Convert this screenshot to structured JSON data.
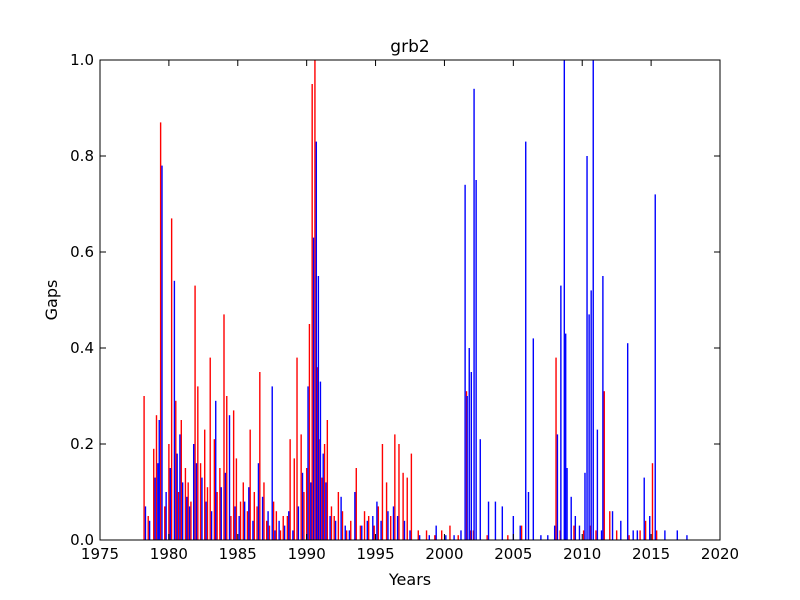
{
  "chart_data": {
    "type": "bar",
    "title": "grb2",
    "xlabel": "Years",
    "ylabel": "Gaps",
    "xlim": [
      1975,
      2020
    ],
    "ylim": [
      0,
      1.0
    ],
    "x_ticks": [
      1975,
      1980,
      1985,
      1990,
      1995,
      2000,
      2005,
      2010,
      2015,
      2020
    ],
    "x_tick_labels": [
      "1975",
      "1980",
      "1985",
      "1990",
      "1995",
      "2000",
      "2005",
      "2010",
      "2015",
      "2020"
    ],
    "y_ticks": [
      0.0,
      0.2,
      0.4,
      0.6,
      0.8,
      1.0
    ],
    "y_tick_labels": [
      "0.0",
      "0.2",
      "0.4",
      "0.6",
      "0.8",
      "1.0"
    ],
    "grid": false,
    "series": [
      {
        "color": "#ff0000",
        "x": [
          1978.2,
          1978.5,
          1978.9,
          1979.1,
          1979.4,
          1979.7,
          1980.0,
          1980.2,
          1980.5,
          1980.7,
          1980.9,
          1981.2,
          1981.4,
          1981.6,
          1981.9,
          1982.1,
          1982.3,
          1982.6,
          1982.8,
          1983.0,
          1983.3,
          1983.5,
          1983.7,
          1984.0,
          1984.2,
          1984.5,
          1984.7,
          1984.9,
          1985.2,
          1985.4,
          1985.7,
          1985.9,
          1986.2,
          1986.4,
          1986.6,
          1986.9,
          1987.1,
          1987.3,
          1987.6,
          1987.8,
          1988.1,
          1988.3,
          1988.6,
          1988.8,
          1989.1,
          1989.3,
          1989.6,
          1989.8,
          1990.0,
          1990.2,
          1990.4,
          1990.6,
          1990.8,
          1990.9,
          1991.1,
          1991.3,
          1991.5,
          1991.8,
          1992.0,
          1992.3,
          1992.6,
          1992.9,
          1993.2,
          1993.6,
          1993.9,
          1994.2,
          1994.5,
          1994.9,
          1995.2,
          1995.5,
          1995.8,
          1996.1,
          1996.4,
          1996.7,
          1997.0,
          1997.3,
          1997.6,
          1998.1,
          1998.7,
          1999.3,
          1999.8,
          2000.4,
          2001.0,
          2001.6,
          2001.9,
          2002.1,
          2003.1,
          2004.6,
          2005.6,
          2008.1,
          2008.4,
          2009.4,
          2010.1,
          2010.6,
          2011.0,
          2011.6,
          2012.0,
          2012.5,
          2013.4,
          2014.2,
          2014.6,
          2015.1,
          2015.4
        ],
        "values": [
          0.3,
          0.05,
          0.19,
          0.26,
          0.87,
          0.07,
          0.2,
          0.67,
          0.29,
          0.1,
          0.25,
          0.15,
          0.12,
          0.08,
          0.53,
          0.32,
          0.16,
          0.23,
          0.11,
          0.38,
          0.21,
          0.1,
          0.15,
          0.47,
          0.3,
          0.05,
          0.27,
          0.17,
          0.08,
          0.12,
          0.06,
          0.23,
          0.1,
          0.07,
          0.35,
          0.12,
          0.04,
          0.03,
          0.08,
          0.06,
          0.02,
          0.05,
          0.05,
          0.21,
          0.17,
          0.38,
          0.22,
          0.1,
          0.15,
          0.45,
          0.95,
          1.0,
          0.36,
          0.21,
          0.13,
          0.2,
          0.25,
          0.07,
          0.05,
          0.1,
          0.06,
          0.02,
          0.04,
          0.15,
          0.03,
          0.06,
          0.05,
          0.03,
          0.07,
          0.2,
          0.12,
          0.05,
          0.22,
          0.2,
          0.14,
          0.13,
          0.18,
          0.02,
          0.02,
          0.01,
          0.02,
          0.03,
          0.01,
          0.31,
          0.02,
          0.02,
          0.01,
          0.01,
          0.03,
          0.38,
          0.02,
          0.03,
          0.02,
          0.03,
          0.02,
          0.31,
          0.06,
          0.02,
          0.01,
          0.02,
          0.04,
          0.16,
          0.02
        ]
      },
      {
        "color": "#0000ff",
        "x": [
          1978.3,
          1978.6,
          1979.0,
          1979.2,
          1979.3,
          1979.5,
          1979.8,
          1980.1,
          1980.4,
          1980.6,
          1980.8,
          1981.0,
          1981.3,
          1981.5,
          1981.8,
          1982.0,
          1982.4,
          1982.7,
          1983.1,
          1983.4,
          1983.8,
          1984.1,
          1984.4,
          1984.8,
          1985.1,
          1985.5,
          1985.8,
          1986.1,
          1986.5,
          1986.8,
          1987.2,
          1987.5,
          1987.7,
          1988.0,
          1988.4,
          1988.7,
          1989.0,
          1989.4,
          1989.7,
          1990.1,
          1990.3,
          1990.5,
          1990.7,
          1990.85,
          1991.0,
          1991.2,
          1991.4,
          1991.7,
          1992.1,
          1992.5,
          1992.8,
          1993.1,
          1993.5,
          1994.0,
          1994.4,
          1994.8,
          1995.1,
          1995.4,
          1995.9,
          1996.3,
          1996.6,
          1997.1,
          1997.5,
          1998.2,
          1998.9,
          1999.4,
          2000.1,
          2000.7,
          2001.2,
          2001.5,
          2001.65,
          2001.8,
          2001.95,
          2002.15,
          2002.3,
          2002.6,
          2003.2,
          2003.7,
          2004.2,
          2005.0,
          2005.5,
          2005.9,
          2006.1,
          2006.45,
          2007.0,
          2007.5,
          2008.0,
          2008.2,
          2008.45,
          2008.7,
          2008.8,
          2008.9,
          2009.2,
          2009.5,
          2009.8,
          2010.2,
          2010.35,
          2010.5,
          2010.65,
          2010.8,
          2011.1,
          2011.4,
          2011.5,
          2012.2,
          2012.8,
          2013.3,
          2013.7,
          2014.0,
          2014.5,
          2014.9,
          2015.3,
          2016.0,
          2016.9,
          2017.6
        ],
        "values": [
          0.07,
          0.04,
          0.13,
          0.16,
          0.25,
          0.78,
          0.1,
          0.15,
          0.54,
          0.18,
          0.22,
          0.12,
          0.09,
          0.07,
          0.2,
          0.16,
          0.13,
          0.08,
          0.06,
          0.29,
          0.11,
          0.14,
          0.26,
          0.07,
          0.05,
          0.08,
          0.11,
          0.04,
          0.16,
          0.09,
          0.06,
          0.32,
          0.02,
          0.04,
          0.03,
          0.06,
          0.02,
          0.07,
          0.14,
          0.32,
          0.12,
          0.63,
          0.83,
          0.55,
          0.33,
          0.18,
          0.12,
          0.05,
          0.04,
          0.09,
          0.03,
          0.02,
          0.1,
          0.03,
          0.04,
          0.05,
          0.08,
          0.04,
          0.06,
          0.07,
          0.05,
          0.04,
          0.02,
          0.01,
          0.01,
          0.03,
          0.01,
          0.01,
          0.02,
          0.74,
          0.3,
          0.4,
          0.35,
          0.94,
          0.75,
          0.21,
          0.08,
          0.08,
          0.07,
          0.05,
          0.03,
          0.83,
          0.1,
          0.42,
          0.01,
          0.01,
          0.03,
          0.22,
          0.53,
          1.0,
          0.43,
          0.15,
          0.09,
          0.05,
          0.03,
          0.14,
          0.8,
          0.47,
          0.52,
          1.0,
          0.23,
          0.02,
          0.55,
          0.06,
          0.04,
          0.41,
          0.02,
          0.02,
          0.13,
          0.05,
          0.72,
          0.02,
          0.02,
          0.01
        ]
      }
    ]
  }
}
